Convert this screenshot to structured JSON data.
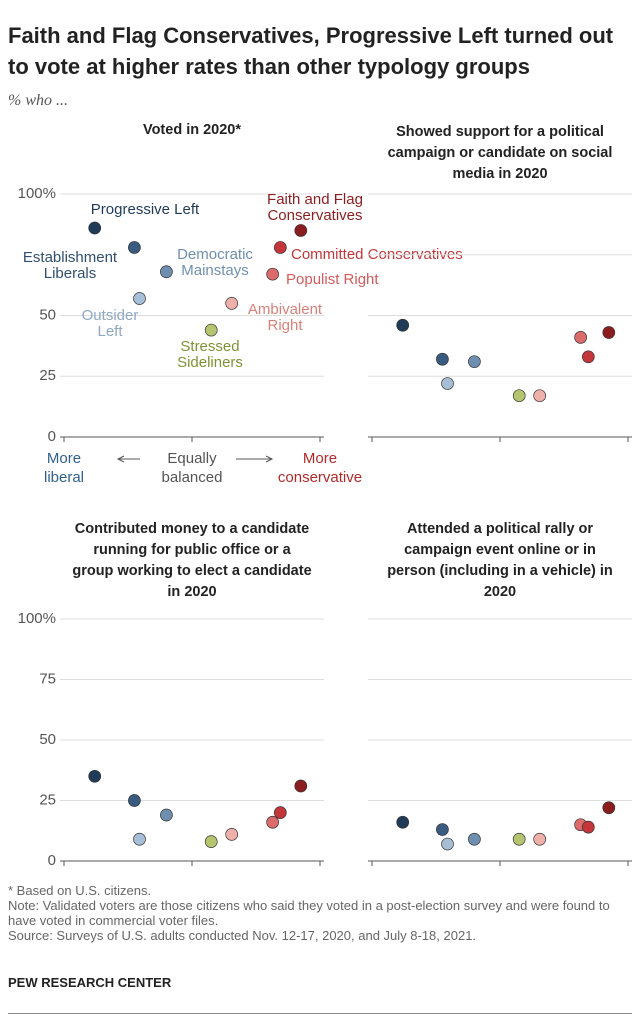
{
  "title": "Faith and Flag Conservatives, Progressive Left turned out to vote at higher rates than other typology groups",
  "subtitle": "% who ...",
  "groups": [
    {
      "name": "Progressive Left",
      "color": "#1f3b57",
      "label_color": "#1f3b57",
      "x": -0.76
    },
    {
      "name": "Establishment Liberals",
      "color": "#3a5b80",
      "label_color": "#2f4f70",
      "x": -0.45
    },
    {
      "name": "Democratic Mainstays",
      "color": "#6f8fb0",
      "label_color": "#6f8fb0",
      "x": -0.2
    },
    {
      "name": "Outsider Left",
      "color": "#a7bfd6",
      "label_color": "#8ea8c4",
      "x": -0.41
    },
    {
      "name": "Stressed Sideliners",
      "color": "#b5c46f",
      "label_color": "#7f9236",
      "x": 0.15
    },
    {
      "name": "Ambivalent Right",
      "color": "#efb0aa",
      "label_color": "#d9807a",
      "x": 0.31
    },
    {
      "name": "Populist Right",
      "color": "#dc6b6c",
      "label_color": "#d45a5b",
      "x": 0.63
    },
    {
      "name": "Committed Conservatives",
      "color": "#c4363a",
      "label_color": "#c4363a",
      "x": 0.69
    },
    {
      "name": "Faith and Flag Conservatives",
      "color": "#8b1d1f",
      "label_color": "#8b1d1f",
      "x": 0.85
    }
  ],
  "xlim": [
    -1,
    1
  ],
  "xticks": [
    {
      "value": -1,
      "label": "More liberal"
    },
    {
      "value": 0,
      "label": "Equally balanced"
    },
    {
      "value": 1,
      "label": "More conservative"
    }
  ],
  "chart_data": [
    {
      "type": "dot",
      "title": "Voted in 2020*",
      "values": [
        86,
        78,
        68,
        57,
        44,
        55,
        67,
        78,
        85
      ],
      "ylim": [
        0,
        100
      ],
      "yticks": [
        0,
        25,
        50,
        {
          "value": 100,
          "label": "100%"
        }
      ],
      "y_labels": true,
      "x_labels": true,
      "group_labels": true
    },
    {
      "type": "dot",
      "title": "Showed support for a political campaign or candidate on social media in 2020",
      "values": [
        46,
        32,
        31,
        22,
        17,
        17,
        41,
        33,
        43
      ],
      "ylim": [
        0,
        100
      ],
      "yticks": [
        0,
        25,
        50,
        75,
        100
      ],
      "y_labels": false,
      "x_labels": false,
      "group_labels": false
    },
    {
      "type": "dot",
      "title": "Contributed money to a candidate running for public office or a group working to elect a candidate in 2020",
      "values": [
        35,
        25,
        19,
        9,
        8,
        11,
        16,
        20,
        31
      ],
      "ylim": [
        0,
        100
      ],
      "yticks": [
        0,
        25,
        50,
        75,
        {
          "value": 100,
          "label": "100%"
        }
      ],
      "y_labels": true,
      "x_labels": false,
      "group_labels": false
    },
    {
      "type": "dot",
      "title": "Attended a political rally or campaign event online or in person (including in a vehicle) in 2020",
      "values": [
        16,
        13,
        9,
        7,
        9,
        9,
        15,
        14,
        22
      ],
      "ylim": [
        0,
        100
      ],
      "yticks": [
        0,
        25,
        50,
        75,
        100
      ],
      "y_labels": false,
      "x_labels": false,
      "group_labels": false
    }
  ],
  "notes": [
    "* Based on U.S. citizens.",
    "Note: Validated voters are those citizens who said they voted in a post-election survey and were found to have voted in commercial voter files.",
    "Source: Surveys of U.S. adults conducted Nov. 12-17, 2020, and July 8-18, 2021."
  ],
  "brand": "PEW RESEARCH CENTER"
}
